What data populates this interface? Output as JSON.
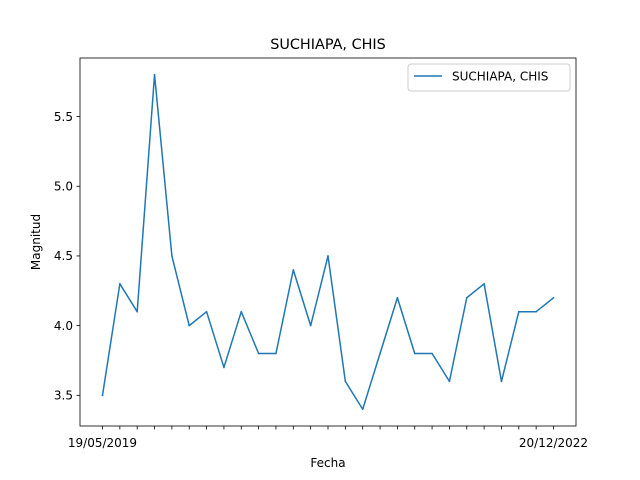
{
  "chart_data": {
    "type": "line",
    "title": "SUCHIAPA, CHIS",
    "xlabel": "Fecha",
    "ylabel": "Magnitud",
    "x": [
      "19/05/2019",
      "",
      "",
      "",
      "",
      "",
      "",
      "",
      "",
      "",
      "",
      "",
      "",
      "",
      "",
      "",
      "",
      "",
      "",
      "",
      "",
      "",
      "",
      "",
      "",
      "",
      "20/12/2022"
    ],
    "series": [
      {
        "name": "SUCHIAPA, CHIS",
        "color": "#1f77b4",
        "values": [
          3.5,
          4.3,
          4.1,
          5.8,
          4.5,
          4.0,
          4.1,
          3.7,
          4.1,
          3.8,
          3.8,
          4.4,
          4.0,
          4.5,
          3.6,
          3.4,
          3.8,
          4.2,
          3.8,
          3.8,
          3.6,
          4.2,
          4.3,
          3.6,
          4.1,
          4.1,
          4.2
        ]
      }
    ],
    "yticks": [
      3.5,
      4.0,
      4.5,
      5.0,
      5.5
    ],
    "ytick_labels": [
      "3.5",
      "4.0",
      "4.5",
      "5.0",
      "5.5"
    ],
    "ylim": [
      3.28,
      5.92
    ],
    "grid": false,
    "legend": "top-right"
  }
}
